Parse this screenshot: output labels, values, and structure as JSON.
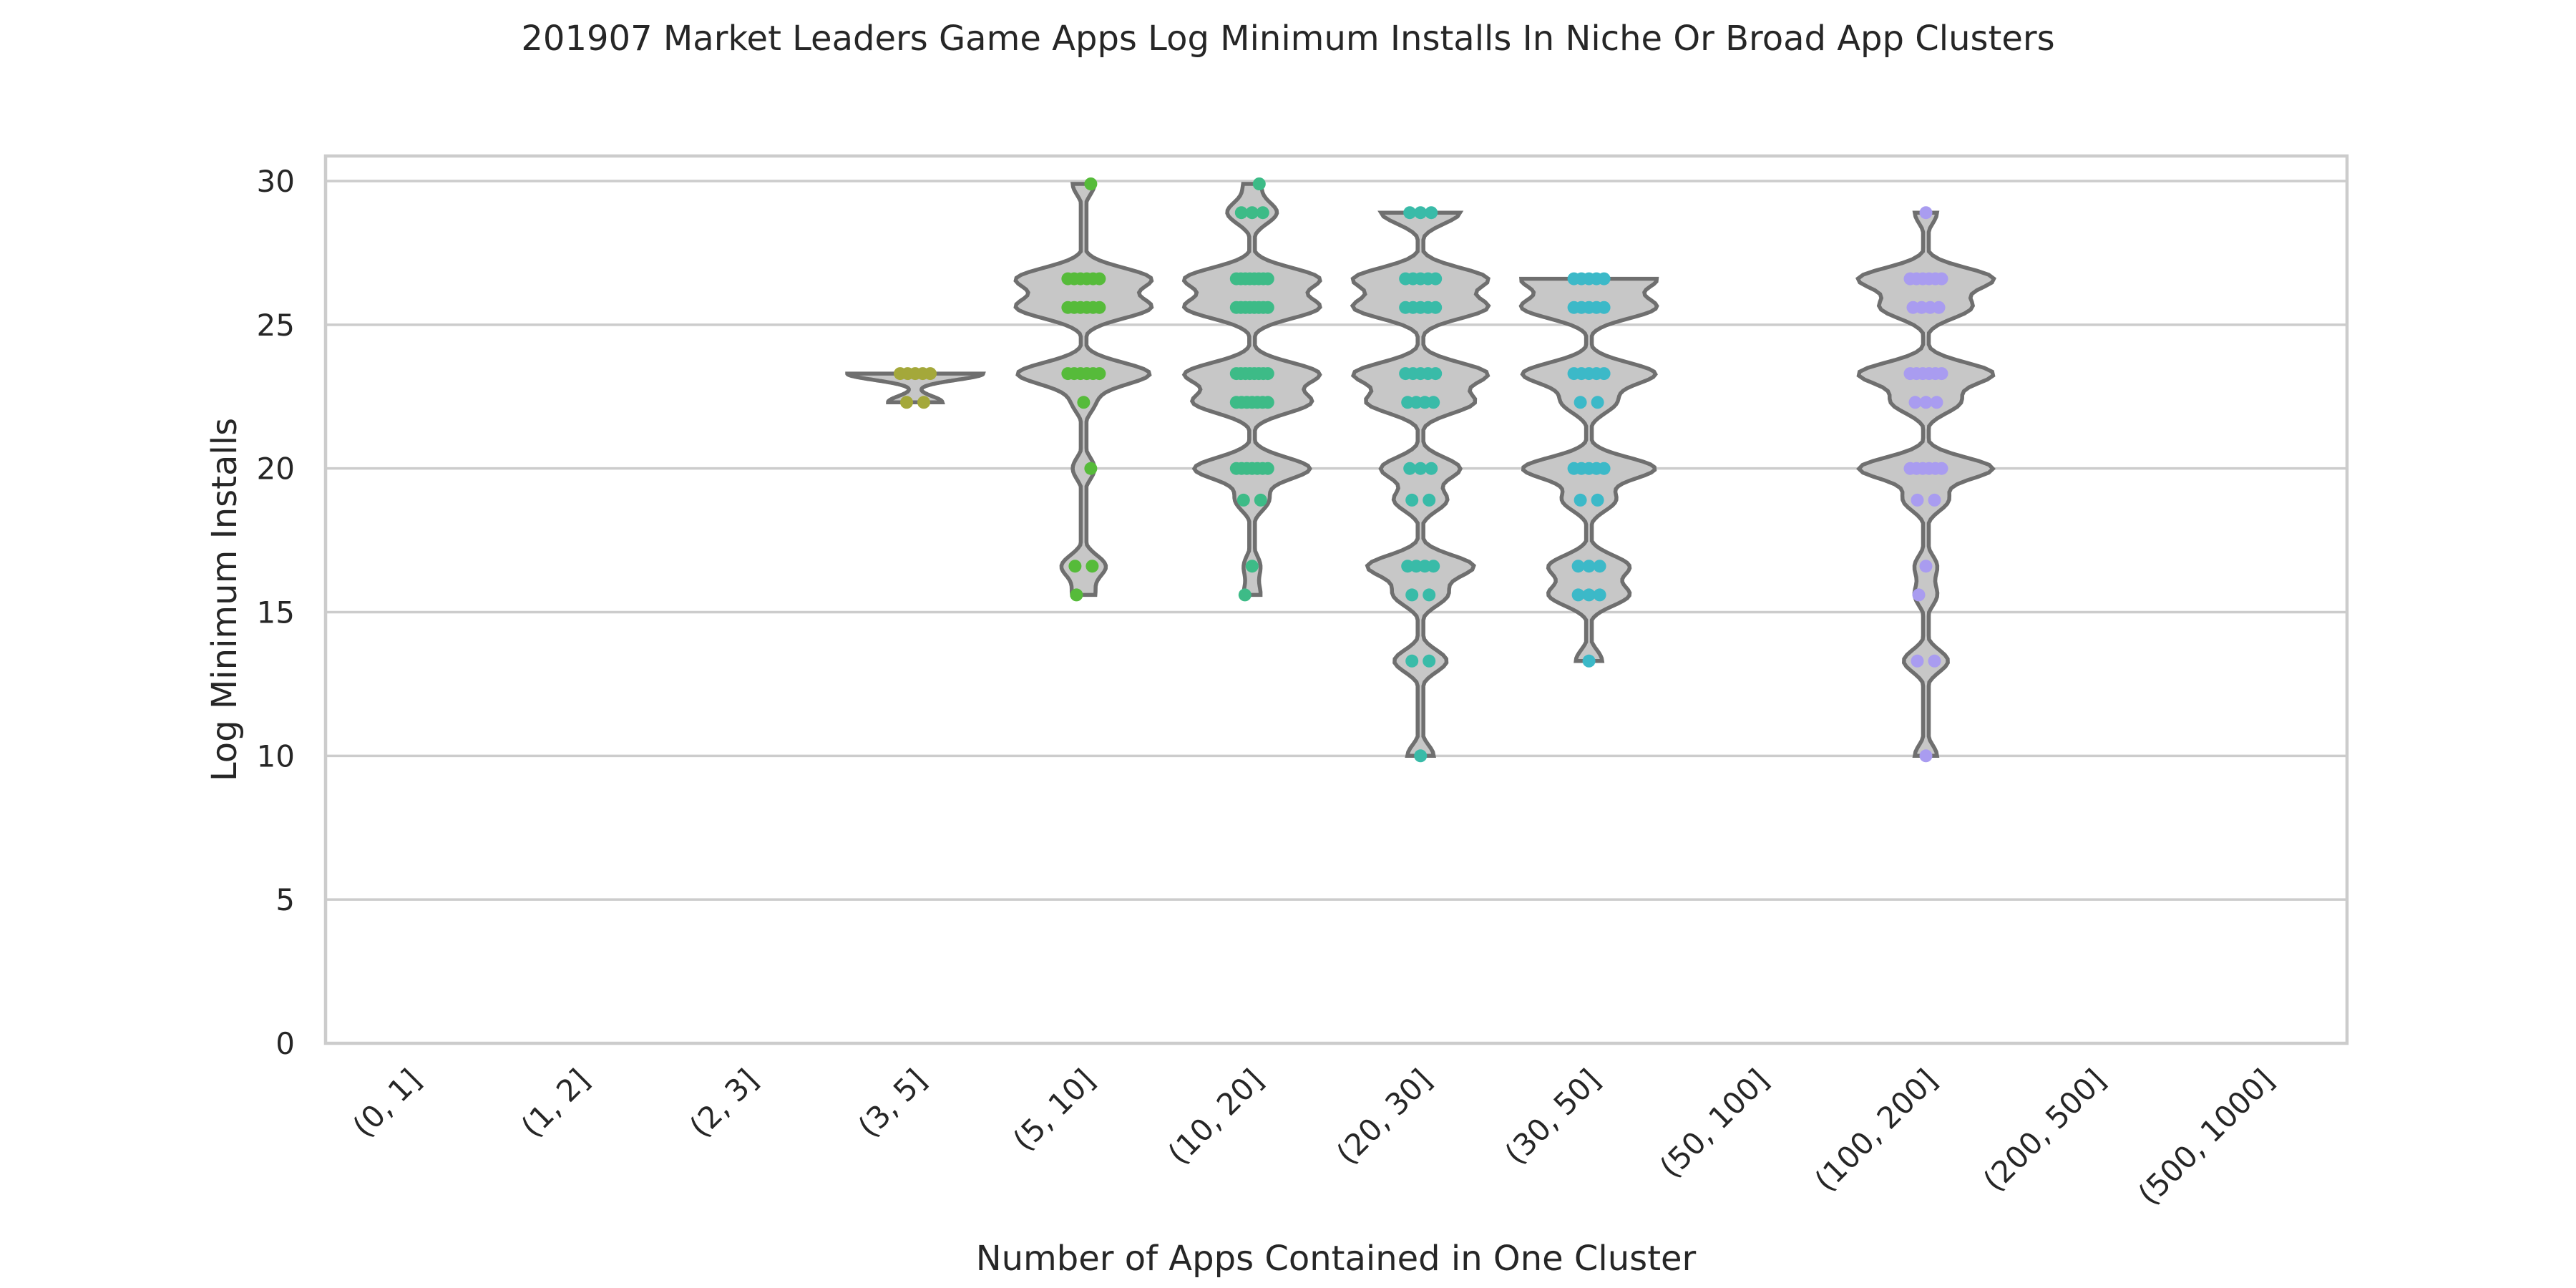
{
  "chart_data": {
    "type": "violin",
    "title": "201907 Market Leaders Game Apps Log Minimum Installs In Niche Or Broad App Clusters",
    "xlabel": "Number of Apps Contained in One Cluster",
    "ylabel": "Log Minimum Installs",
    "ylim": [
      0,
      30
    ],
    "yticks": [
      0,
      5,
      10,
      15,
      20,
      25,
      30
    ],
    "grid": "horizontal",
    "categories": [
      "(0, 1]",
      "(1, 2]",
      "(2, 3]",
      "(3, 5]",
      "(5, 10]",
      "(10, 20]",
      "(20, 30]",
      "(30, 50]",
      "(50, 100]",
      "(100, 200]",
      "(200, 500]",
      "(500, 1000]"
    ],
    "series": [
      {
        "category": "(3, 5]",
        "color": "#a4a83a",
        "range": [
          22.3,
          23.3
        ],
        "points": [
          [
            22.3,
            2
          ],
          [
            23.3,
            5
          ]
        ]
      },
      {
        "category": "(5, 10]",
        "color": "#56bb3a",
        "range": [
          15.6,
          29.9
        ],
        "points": [
          [
            29.9,
            1
          ],
          [
            26.6,
            6
          ],
          [
            25.6,
            6
          ],
          [
            23.3,
            6
          ],
          [
            22.3,
            1
          ],
          [
            20.0,
            1
          ],
          [
            16.6,
            2
          ],
          [
            15.6,
            1
          ]
        ]
      },
      {
        "category": "(10, 20]",
        "color": "#3dbb87",
        "range": [
          15.6,
          29.9
        ],
        "points": [
          [
            29.9,
            1
          ],
          [
            28.9,
            3
          ],
          [
            26.6,
            8
          ],
          [
            25.6,
            8
          ],
          [
            23.3,
            8
          ],
          [
            22.3,
            7
          ],
          [
            20.0,
            7
          ],
          [
            18.9,
            2
          ],
          [
            16.6,
            1
          ],
          [
            15.6,
            1
          ]
        ]
      },
      {
        "category": "(20, 30]",
        "color": "#39bba8",
        "range": [
          10.0,
          28.9
        ],
        "points": [
          [
            28.9,
            3
          ],
          [
            26.6,
            5
          ],
          [
            25.6,
            5
          ],
          [
            23.3,
            5
          ],
          [
            22.3,
            4
          ],
          [
            20.0,
            3
          ],
          [
            18.9,
            2
          ],
          [
            16.6,
            4
          ],
          [
            15.6,
            2
          ],
          [
            13.3,
            2
          ],
          [
            10.0,
            1
          ]
        ]
      },
      {
        "category": "(30, 50]",
        "color": "#3cb9c8",
        "range": [
          13.3,
          26.6
        ],
        "points": [
          [
            26.6,
            5
          ],
          [
            25.6,
            5
          ],
          [
            23.3,
            5
          ],
          [
            22.3,
            2
          ],
          [
            20.0,
            5
          ],
          [
            18.9,
            2
          ],
          [
            16.6,
            3
          ],
          [
            15.6,
            3
          ],
          [
            13.3,
            1
          ]
        ]
      },
      {
        "category": "(100, 200]",
        "color": "#a99cf0",
        "range": [
          10.0,
          28.9
        ],
        "points": [
          [
            28.9,
            1
          ],
          [
            26.6,
            6
          ],
          [
            25.6,
            4
          ],
          [
            23.3,
            6
          ],
          [
            22.3,
            3
          ],
          [
            20.0,
            6
          ],
          [
            18.9,
            2
          ],
          [
            16.6,
            1
          ],
          [
            15.6,
            1
          ],
          [
            13.3,
            2
          ],
          [
            10.0,
            1
          ]
        ]
      }
    ]
  }
}
